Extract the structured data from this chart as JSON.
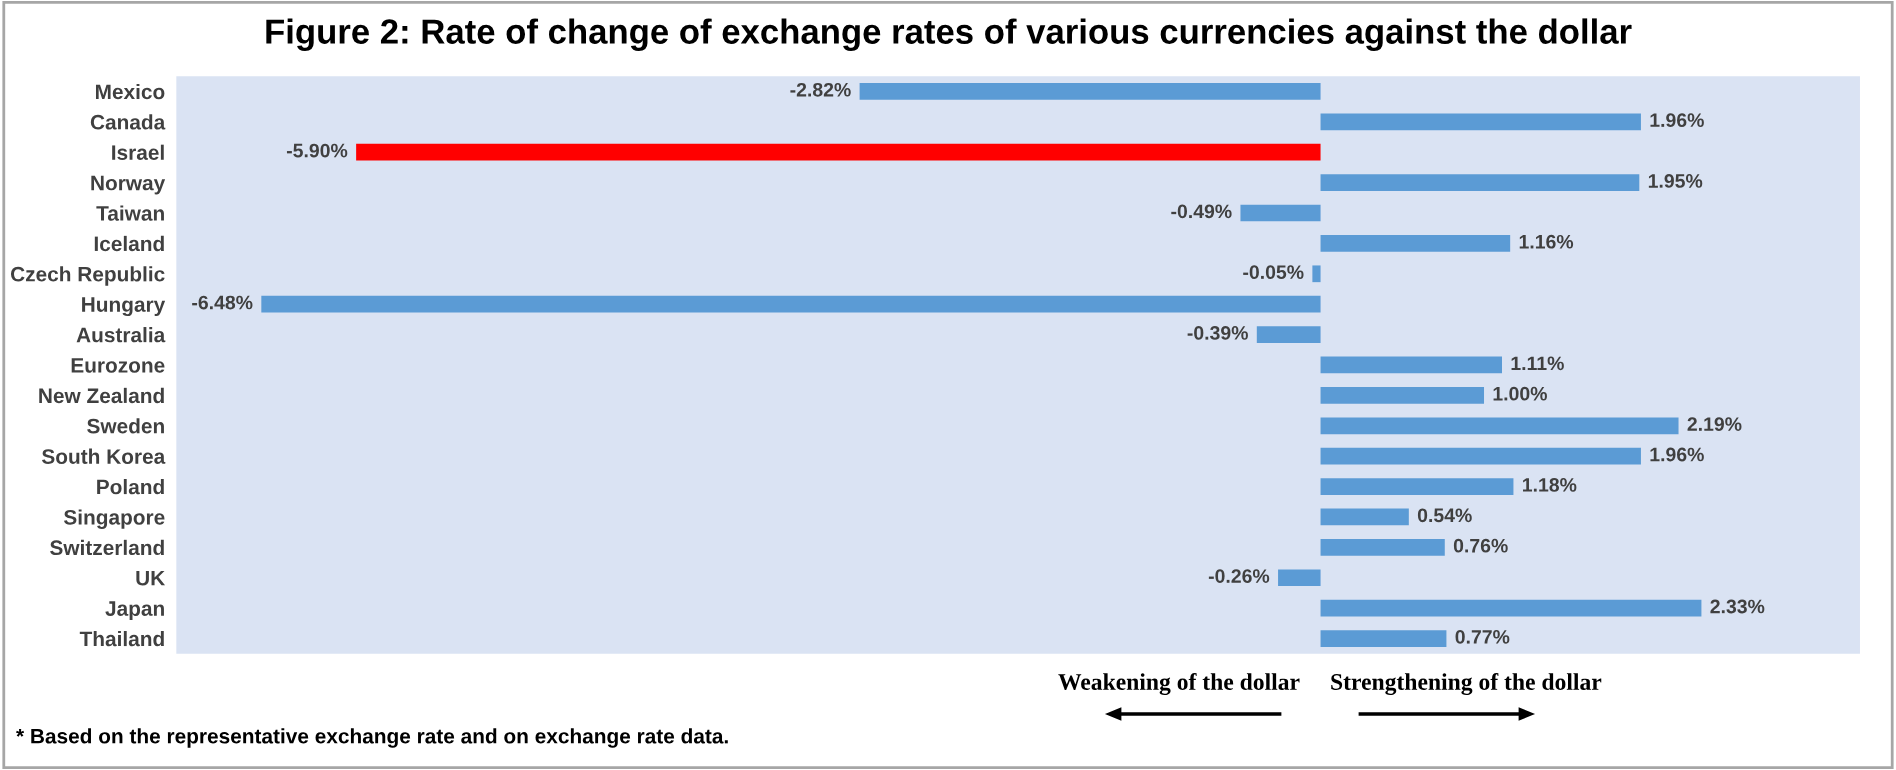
{
  "chart_data": {
    "type": "bar",
    "orientation": "horizontal",
    "title": "Figure 2: Rate of change of exchange rates of various currencies against the dollar",
    "categories": [
      "Mexico",
      "Canada",
      "Israel",
      "Norway",
      "Taiwan",
      "Iceland",
      "Czech Republic",
      "Hungary",
      "Australia",
      "Eurozone",
      "New Zealand",
      "Sweden",
      "South Korea",
      "Poland",
      "Singapore",
      "Switzerland",
      "UK",
      "Japan",
      "Thailand"
    ],
    "values": [
      -2.82,
      1.96,
      -5.9,
      1.95,
      -0.49,
      1.16,
      -0.05,
      -6.48,
      -0.39,
      1.11,
      1.0,
      2.19,
      1.96,
      1.18,
      0.54,
      0.76,
      -0.26,
      2.33,
      0.77
    ],
    "value_labels": [
      "-2.82%",
      "1.96%",
      "-5.90%",
      "1.95%",
      "-0.49%",
      "1.16%",
      "-0.05%",
      "-6.48%",
      "-0.39%",
      "1.11%",
      "1.00%",
      "2.19%",
      "1.96%",
      "1.18%",
      "0.54%",
      "0.76%",
      "-0.26%",
      "2.33%",
      "0.77%"
    ],
    "colors": [
      "#5b9bd5",
      "#5b9bd5",
      "#ff0000",
      "#5b9bd5",
      "#5b9bd5",
      "#5b9bd5",
      "#5b9bd5",
      "#5b9bd5",
      "#5b9bd5",
      "#5b9bd5",
      "#5b9bd5",
      "#5b9bd5",
      "#5b9bd5",
      "#5b9bd5",
      "#5b9bd5",
      "#5b9bd5",
      "#5b9bd5",
      "#5b9bd5",
      "#5b9bd5"
    ],
    "xlim": [
      -7,
      3.3
    ],
    "tick_labels": "y",
    "grid": false,
    "legend": false,
    "annotations": [
      "Weakening of the dollar",
      "Strengthening of the dollar",
      "* Based on the representative exchange rate and on exchange rate data."
    ]
  }
}
